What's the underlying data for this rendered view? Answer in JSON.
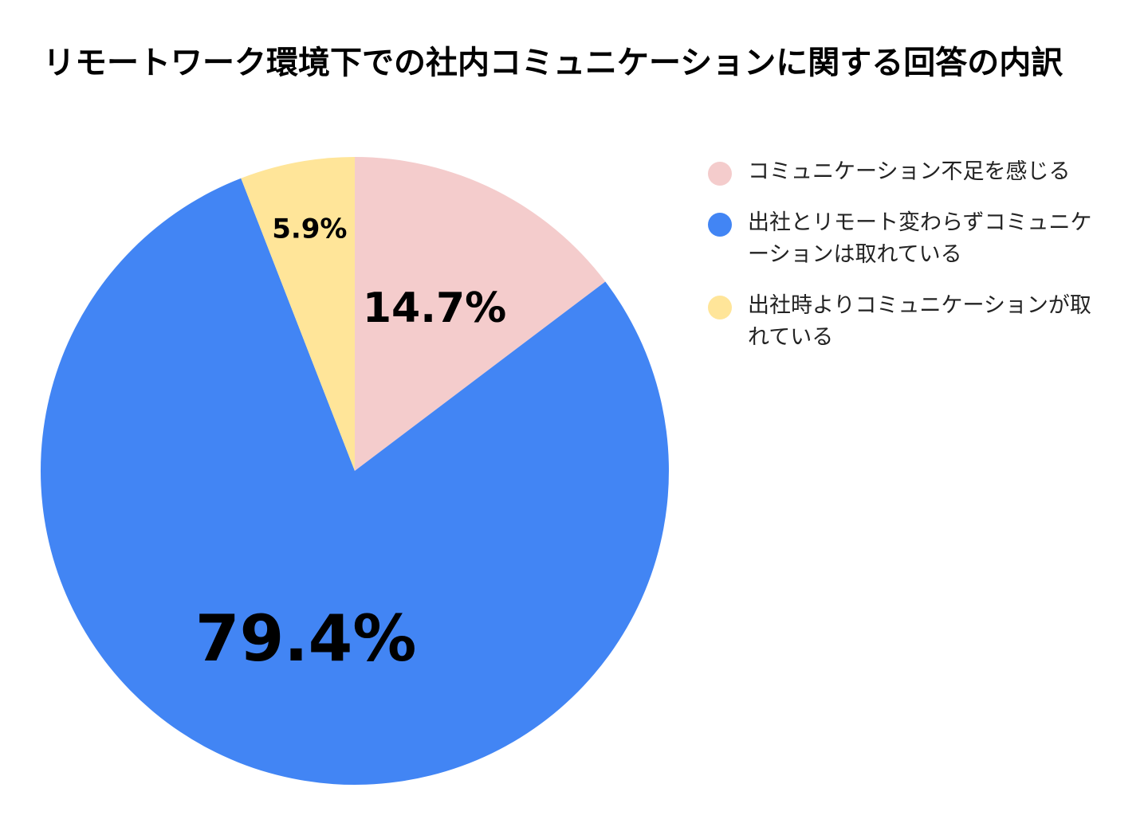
{
  "chart_data": {
    "type": "pie",
    "title": "リモートワーク環境下での社内コミュニケーションに関する回答の内訳",
    "categories": [
      "コミュニケーション不足を感じる",
      "出社とリモート変わらずコミュニケーションは取れている",
      "出社時よりコミュニケーションが取れている"
    ],
    "values": [
      14.7,
      79.4,
      5.9
    ],
    "labels": [
      "14.7%",
      "79.4%",
      "5.9%"
    ],
    "colors": [
      "#f4cccc",
      "#4285f4",
      "#ffe599"
    ],
    "start_angle": "12 o'clock",
    "direction": "clockwise",
    "legend_position": "right"
  },
  "legend": {
    "items": [
      {
        "text": "コミュニケーション不足を感じる",
        "color": "#f4cccc"
      },
      {
        "text": "出社とリモート変わらずコミュニケーションは取れている",
        "color": "#4285f4"
      },
      {
        "text": "出社時よりコミュニケーションが取れている",
        "color": "#ffe599"
      }
    ]
  }
}
